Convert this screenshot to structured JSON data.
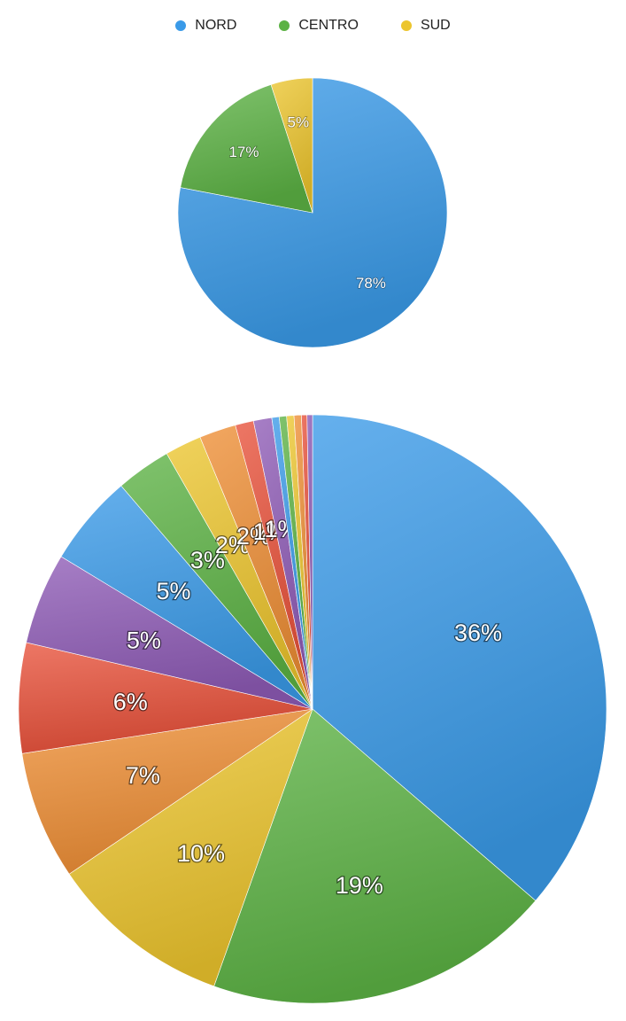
{
  "legend": [
    {
      "label": "NORD",
      "color": "#3a9ae8"
    },
    {
      "label": "CENTRO",
      "color": "#5cb244"
    },
    {
      "label": "SUD",
      "color": "#ecc52e"
    }
  ],
  "chart_data": [
    {
      "type": "pie",
      "title": "",
      "slices": [
        {
          "label": "NORD",
          "value": 78,
          "text": "78%",
          "color": "#3a9ae8"
        },
        {
          "label": "CENTRO",
          "value": 17,
          "text": "17%",
          "color": "#5cb244"
        },
        {
          "label": "SUD",
          "value": 5,
          "text": "5%",
          "color": "#ecc52e"
        }
      ]
    },
    {
      "type": "pie",
      "title": "",
      "slices": [
        {
          "value": 36,
          "text": "36%",
          "color": "#3a9ae8"
        },
        {
          "value": 19,
          "text": "19%",
          "color": "#5cb244"
        },
        {
          "value": 10,
          "text": "10%",
          "color": "#ecc52e"
        },
        {
          "value": 7,
          "text": "7%",
          "color": "#ee8e35"
        },
        {
          "value": 6,
          "text": "6%",
          "color": "#e8513a"
        },
        {
          "value": 5,
          "text": "5%",
          "color": "#8e5bb6"
        },
        {
          "value": 5,
          "text": "5%",
          "color": "#3a9ae8"
        },
        {
          "value": 3,
          "text": "3%",
          "color": "#5cb244"
        },
        {
          "value": 2,
          "text": "2%",
          "color": "#ecc52e"
        },
        {
          "value": 2,
          "text": "2%",
          "color": "#ee8e35"
        },
        {
          "value": 1,
          "text": "1%",
          "color": "#e8513a"
        },
        {
          "value": 1,
          "text": "1%",
          "color": "#8e5bb6"
        },
        {
          "value": 0.4,
          "text": "",
          "color": "#3a9ae8"
        },
        {
          "value": 0.4,
          "text": "",
          "color": "#5cb244"
        },
        {
          "value": 0.4,
          "text": "",
          "color": "#ecc52e"
        },
        {
          "value": 0.4,
          "text": "",
          "color": "#ee8e35"
        },
        {
          "value": 0.3,
          "text": "",
          "color": "#e8513a"
        },
        {
          "value": 0.3,
          "text": "",
          "color": "#8e5bb6"
        }
      ]
    }
  ]
}
